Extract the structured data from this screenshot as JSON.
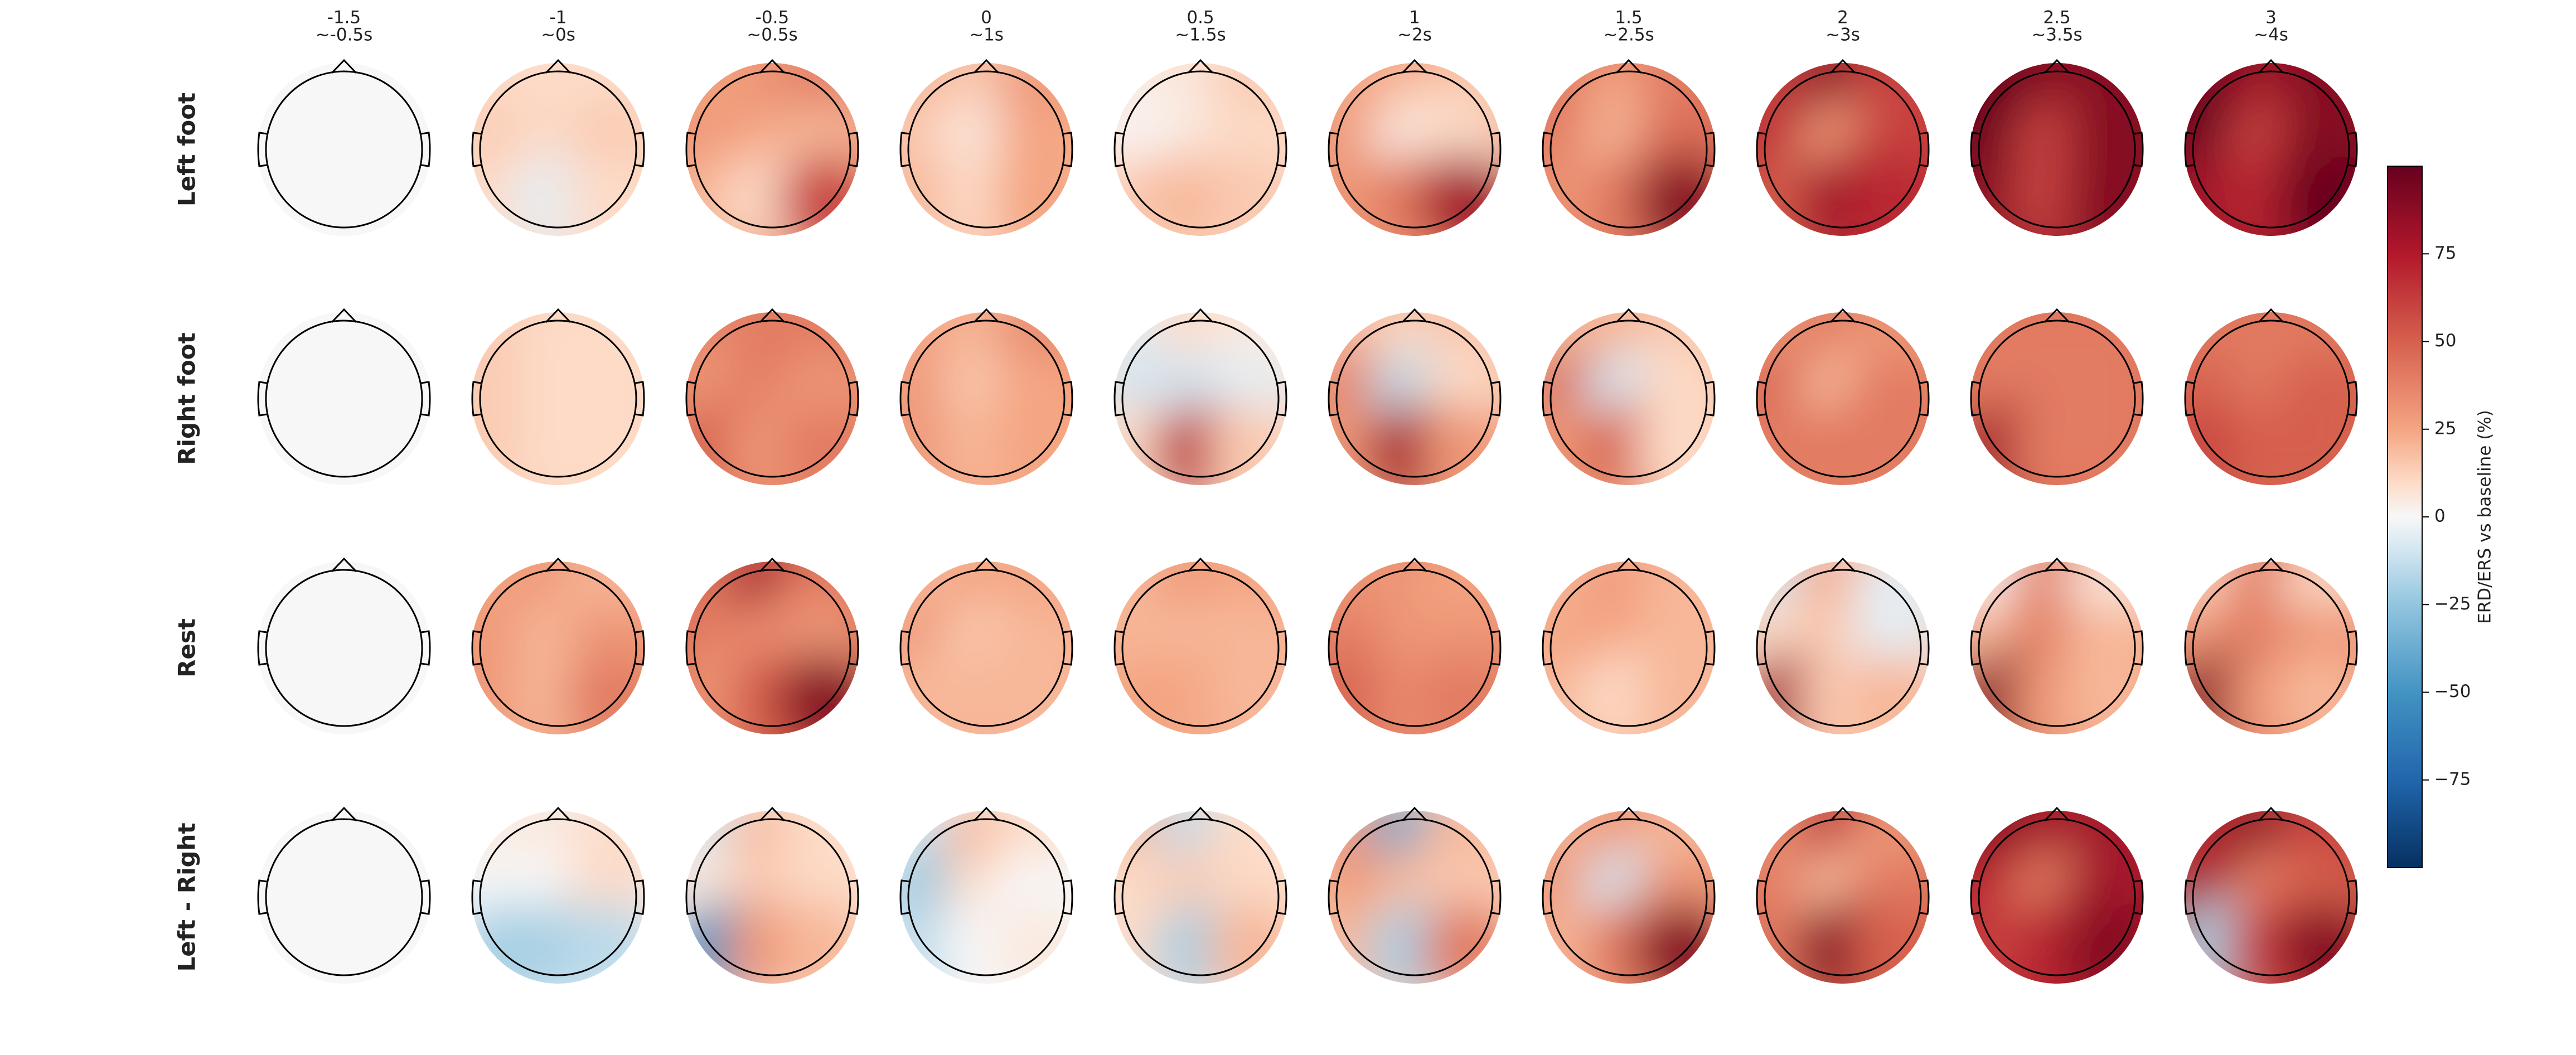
{
  "chart_data": {
    "type": "topomap",
    "times": [
      -1.5,
      -1,
      -0.5,
      0,
      0.5,
      1,
      1.5,
      2,
      2.5,
      3
    ],
    "windows": [
      "~-0.5s",
      "~0s",
      "~0.5s",
      "~1s",
      "~1.5s",
      "~2s",
      "~2.5s",
      "~3s",
      "~3.5s",
      "~4s"
    ],
    "rows": [
      "Left foot",
      "Right foot",
      "Rest",
      "Left - Right"
    ],
    "colormap": "RdBu_r",
    "clim": [
      -100,
      100
    ],
    "colorbar_label": "ERD/ERS vs baseline (%)",
    "colorbar_ticks": [
      {
        "value": -75,
        "label": "−75"
      },
      {
        "value": -50,
        "label": "−50"
      },
      {
        "value": -25,
        "label": "−25"
      },
      0,
      25,
      50,
      75
    ],
    "maps": [
      [
        [
          0,
          0,
          0,
          0,
          0,
          0,
          0,
          0,
          0
        ],
        [
          10,
          10,
          10,
          15,
          10,
          15,
          10,
          -5,
          10
        ],
        [
          25,
          30,
          40,
          30,
          25,
          20,
          20,
          10,
          60
        ],
        [
          20,
          15,
          30,
          15,
          5,
          25,
          20,
          10,
          25
        ],
        [
          5,
          5,
          15,
          0,
          5,
          10,
          15,
          20,
          15
        ],
        [
          25,
          20,
          15,
          30,
          5,
          10,
          30,
          40,
          80
        ],
        [
          40,
          25,
          40,
          40,
          20,
          45,
          30,
          40,
          90
        ],
        [
          60,
          90,
          60,
          70,
          30,
          60,
          50,
          80,
          70
        ],
        [
          100,
          90,
          90,
          100,
          60,
          90,
          90,
          60,
          90
        ],
        [
          100,
          80,
          90,
          100,
          60,
          90,
          80,
          70,
          100
        ]
      ],
      [
        [
          0,
          0,
          0,
          0,
          0,
          0,
          0,
          0,
          0
        ],
        [
          15,
          10,
          10,
          15,
          10,
          10,
          15,
          10,
          10
        ],
        [
          35,
          40,
          40,
          30,
          40,
          30,
          50,
          30,
          40
        ],
        [
          25,
          20,
          35,
          30,
          15,
          25,
          30,
          20,
          25
        ],
        [
          -5,
          10,
          5,
          -10,
          -10,
          -5,
          10,
          70,
          15
        ],
        [
          20,
          10,
          15,
          40,
          -15,
          10,
          30,
          80,
          30
        ],
        [
          20,
          20,
          15,
          50,
          -10,
          10,
          30,
          50,
          10
        ],
        [
          30,
          40,
          30,
          50,
          20,
          40,
          40,
          40,
          40
        ],
        [
          40,
          40,
          40,
          40,
          40,
          40,
          80,
          40,
          40
        ],
        [
          40,
          40,
          40,
          50,
          40,
          50,
          60,
          50,
          50
        ]
      ],
      [
        [
          0,
          0,
          0,
          0,
          0,
          0,
          0,
          0,
          0
        ],
        [
          25,
          30,
          20,
          30,
          20,
          30,
          30,
          20,
          40
        ],
        [
          40,
          80,
          40,
          40,
          35,
          30,
          30,
          50,
          90
        ],
        [
          20,
          25,
          25,
          30,
          15,
          20,
          20,
          20,
          20
        ],
        [
          20,
          30,
          25,
          20,
          20,
          20,
          25,
          25,
          20
        ],
        [
          30,
          30,
          25,
          40,
          30,
          30,
          50,
          35,
          40
        ],
        [
          20,
          30,
          20,
          25,
          25,
          20,
          20,
          10,
          20
        ],
        [
          -10,
          25,
          -5,
          10,
          15,
          -5,
          80,
          15,
          20
        ],
        [
          0,
          40,
          5,
          20,
          40,
          20,
          90,
          30,
          20
        ],
        [
          10,
          40,
          10,
          30,
          40,
          30,
          90,
          30,
          20
        ]
      ],
      [
        [
          0,
          0,
          0,
          0,
          0,
          0,
          0,
          0,
          0
        ],
        [
          5,
          5,
          10,
          0,
          0,
          10,
          -20,
          -20,
          -15
        ],
        [
          -10,
          20,
          10,
          5,
          15,
          10,
          -50,
          30,
          20
        ],
        [
          -10,
          20,
          10,
          -25,
          10,
          0,
          -15,
          0,
          5
        ],
        [
          20,
          -15,
          10,
          10,
          15,
          10,
          10,
          -20,
          20
        ],
        [
          30,
          -40,
          20,
          30,
          20,
          15,
          20,
          -20,
          40
        ],
        [
          20,
          30,
          20,
          30,
          -10,
          30,
          20,
          40,
          90
        ],
        [
          30,
          70,
          30,
          40,
          20,
          40,
          40,
          90,
          50
        ],
        [
          90,
          80,
          80,
          70,
          40,
          80,
          60,
          70,
          90
        ],
        [
          70,
          90,
          60,
          80,
          40,
          50,
          -20,
          60,
          90
        ]
      ]
    ]
  }
}
